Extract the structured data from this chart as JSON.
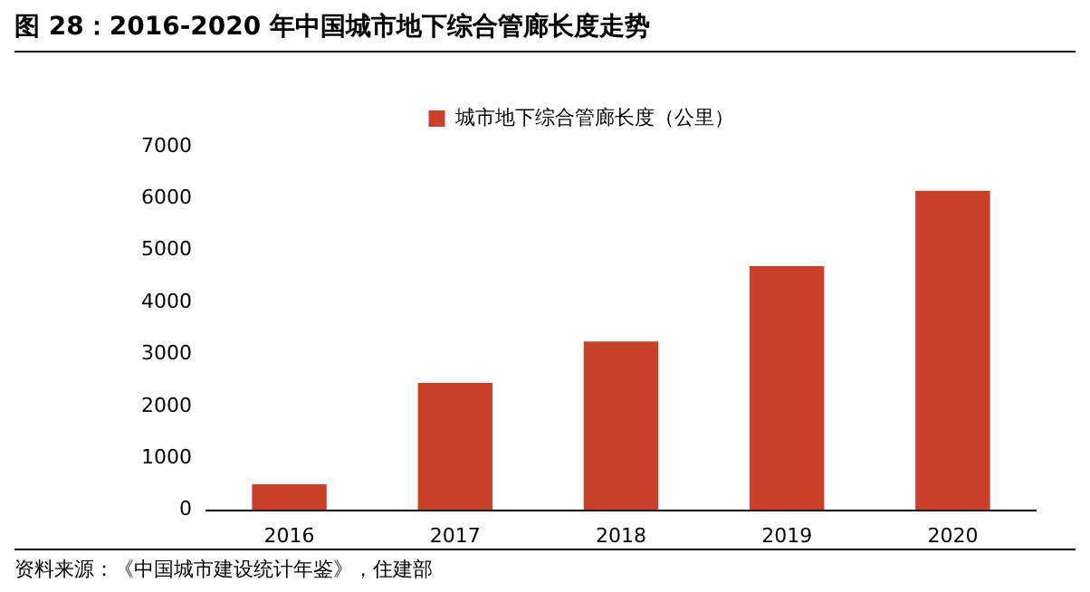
{
  "chart_data": {
    "type": "bar",
    "title": "图 28：2016-2020 年中国城市地下综合管廊长度走势",
    "categories": [
      "2016",
      "2017",
      "2018",
      "2019",
      "2020"
    ],
    "series": [
      {
        "name": "城市地下综合管廊长度（公里）",
        "color": "#c9412a",
        "values": [
          500,
          2450,
          3250,
          4700,
          6150
        ]
      }
    ],
    "ylim": [
      0,
      7000
    ],
    "yticks": [
      0,
      1000,
      2000,
      3000,
      4000,
      5000,
      6000,
      7000
    ],
    "grid": false,
    "legend": "top",
    "annotations": [
      "资料来源：《中国城市建设统计年鉴》，住建部"
    ]
  }
}
